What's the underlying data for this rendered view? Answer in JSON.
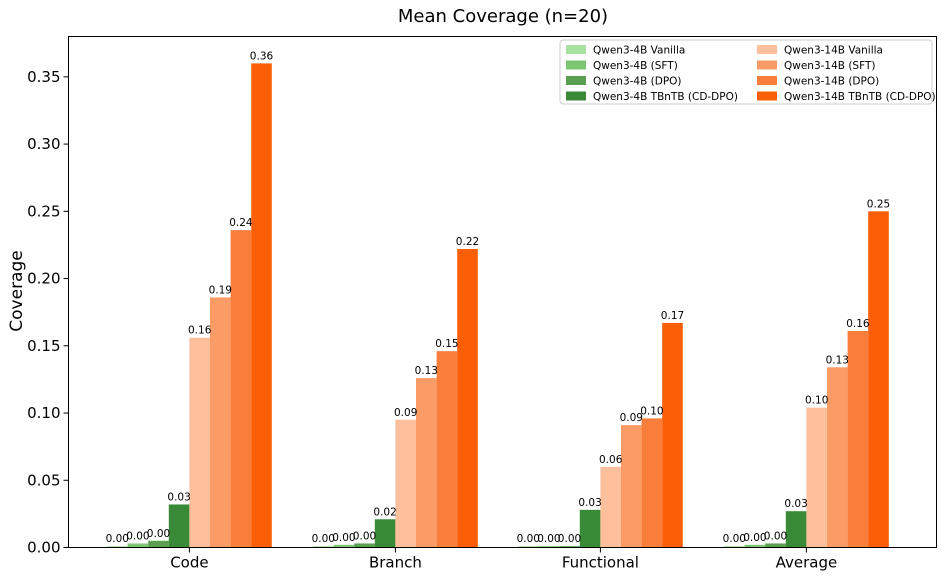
{
  "chart_data": {
    "type": "bar",
    "title": "Mean Coverage (n=20)",
    "xlabel": "",
    "ylabel": "Coverage",
    "ylim": [
      0,
      0.38
    ],
    "yticks": [
      0.0,
      0.05,
      0.1,
      0.15,
      0.2,
      0.25,
      0.3,
      0.35
    ],
    "ytick_labels": [
      "0.00",
      "0.05",
      "0.10",
      "0.15",
      "0.20",
      "0.25",
      "0.30",
      "0.35"
    ],
    "grid": false,
    "legend_position": "top-right",
    "categories": [
      "Code",
      "Branch",
      "Functional",
      "Average"
    ],
    "series": [
      {
        "name": "Qwen3-4B Vanilla",
        "color": "#a8e2a0",
        "values": [
          0.001,
          0.001,
          0.001,
          0.001
        ],
        "labels": [
          "0.00",
          "0.00",
          "0.00",
          "0.00"
        ]
      },
      {
        "name": "Qwen3-4B (SFT)",
        "color": "#7cc673",
        "values": [
          0.003,
          0.002,
          0.001,
          0.002
        ],
        "labels": [
          "0.00",
          "0.00",
          "0.00",
          "0.00"
        ]
      },
      {
        "name": "Qwen3-4B (DPO)",
        "color": "#5a9e52",
        "values": [
          0.005,
          0.003,
          0.001,
          0.003
        ],
        "labels": [
          "0.00",
          "0.00",
          "0.00",
          "0.00"
        ]
      },
      {
        "name": "Qwen3-4B TBnTB (CD-DPO)",
        "color": "#388a36",
        "values": [
          0.032,
          0.021,
          0.028,
          0.027
        ],
        "labels": [
          "0.03",
          "0.02",
          "0.03",
          "0.03"
        ]
      },
      {
        "name": "Qwen3-14B Vanilla",
        "color": "#fdbf9c",
        "values": [
          0.156,
          0.095,
          0.06,
          0.104
        ],
        "labels": [
          "0.16",
          "0.09",
          "0.06",
          "0.10"
        ]
      },
      {
        "name": "Qwen3-14B (SFT)",
        "color": "#fb9c66",
        "values": [
          0.186,
          0.126,
          0.091,
          0.134
        ],
        "labels": [
          "0.19",
          "0.13",
          "0.09",
          "0.13"
        ]
      },
      {
        "name": "Qwen3-14B (DPO)",
        "color": "#fa7e3b",
        "values": [
          0.236,
          0.146,
          0.096,
          0.161
        ],
        "labels": [
          "0.24",
          "0.15",
          "0.10",
          "0.16"
        ]
      },
      {
        "name": "Qwen3-14B TBnTB (CD-DPO)",
        "color": "#fa5f07",
        "values": [
          0.36,
          0.222,
          0.167,
          0.25
        ],
        "labels": [
          "0.36",
          "0.22",
          "0.17",
          "0.25"
        ]
      }
    ]
  }
}
